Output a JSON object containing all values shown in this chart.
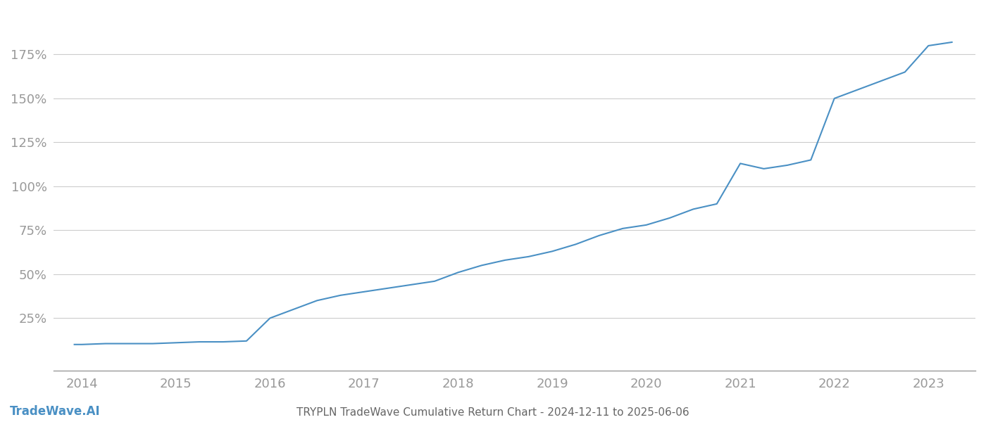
{
  "title": "TRYPLN TradeWave Cumulative Return Chart - 2024-12-11 to 2025-06-06",
  "watermark": "TradeWave.AI",
  "line_color": "#4a90c4",
  "background_color": "#ffffff",
  "grid_color": "#cccccc",
  "x_years": [
    2013.92,
    2014.0,
    2014.25,
    2014.5,
    2014.75,
    2015.0,
    2015.25,
    2015.5,
    2015.75,
    2016.0,
    2016.25,
    2016.5,
    2016.75,
    2017.0,
    2017.25,
    2017.5,
    2017.75,
    2018.0,
    2018.25,
    2018.5,
    2018.75,
    2019.0,
    2019.25,
    2019.5,
    2019.75,
    2020.0,
    2020.25,
    2020.5,
    2020.75,
    2021.0,
    2021.25,
    2021.5,
    2021.75,
    2022.0,
    2022.25,
    2022.5,
    2022.75,
    2023.0,
    2023.25
  ],
  "y_values": [
    10,
    10,
    10.5,
    10.5,
    10.5,
    11,
    11.5,
    11.5,
    12,
    25,
    30,
    35,
    38,
    40,
    42,
    44,
    46,
    51,
    55,
    58,
    60,
    63,
    67,
    72,
    76,
    78,
    82,
    87,
    90,
    113,
    110,
    112,
    115,
    150,
    155,
    160,
    165,
    180,
    182
  ],
  "ytick_values": [
    25,
    50,
    75,
    100,
    125,
    150,
    175
  ],
  "ytick_labels": [
    "25%",
    "50%",
    "75%",
    "100%",
    "125%",
    "150%",
    "175%"
  ],
  "xtick_values": [
    2014,
    2015,
    2016,
    2017,
    2018,
    2019,
    2020,
    2021,
    2022,
    2023
  ],
  "xtick_labels": [
    "2014",
    "2015",
    "2016",
    "2017",
    "2018",
    "2019",
    "2020",
    "2021",
    "2022",
    "2023"
  ],
  "xlim": [
    2013.7,
    2023.5
  ],
  "ylim": [
    -5,
    200
  ],
  "line_width": 1.5,
  "axis_color": "#999999",
  "tick_color": "#999999",
  "title_color": "#666666",
  "title_fontsize": 11,
  "watermark_fontsize": 12,
  "tick_fontsize": 13
}
